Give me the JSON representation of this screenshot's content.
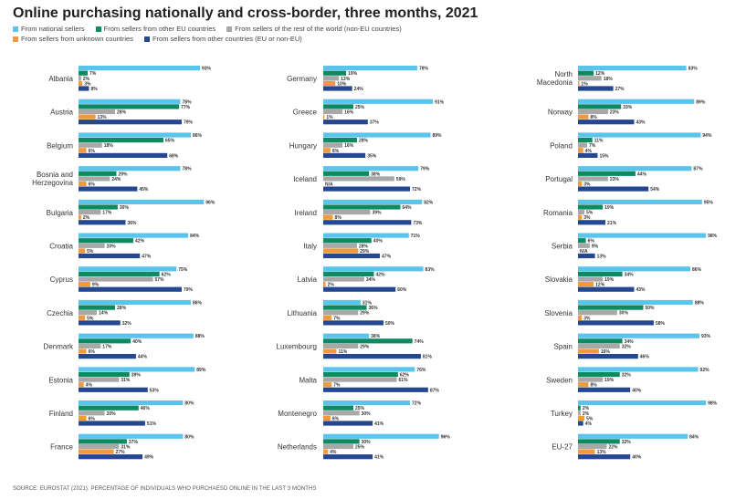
{
  "title": "Online purchasing nationally and cross-border, three months, 2021",
  "source": "SOURCE: EUROSTAT (2021): PERCENTAGE OF INDIVIDUALS WHO PURCHAESD ONLINE IN THE LAST 3 MONTHS",
  "colors": {
    "national": "#5bc4ec",
    "other_eu": "#0e8a62",
    "rest_world": "#a8a8a8",
    "unknown": "#ef9a3c",
    "other_countries": "#24478f"
  },
  "chart_data": {
    "type": "bar",
    "orientation": "horizontal",
    "unit": "%",
    "xlim": [
      0,
      100
    ],
    "grid": false,
    "series": [
      {
        "key": "national",
        "name": "From national sellers"
      },
      {
        "key": "other_eu",
        "name": "From sellers from other EU countries"
      },
      {
        "key": "rest_world",
        "name": "From sellers of the rest of the world (non-EU countries)"
      },
      {
        "key": "unknown",
        "name": "From sellers from unknown countries"
      },
      {
        "key": "other_countries",
        "name": "From sellers from other countries (EU or non-EU)"
      }
    ],
    "columns": [
      [
        {
          "country": "Albania",
          "values": [
            93,
            7,
            2,
            3,
            8
          ]
        },
        {
          "country": "Austria",
          "values": [
            78,
            77,
            28,
            13,
            79
          ]
        },
        {
          "country": "Belgium",
          "values": [
            86,
            65,
            18,
            6,
            68
          ]
        },
        {
          "country": "Bosnia and Herzegovina",
          "values": [
            78,
            29,
            24,
            6,
            45
          ]
        },
        {
          "country": "Bulgaria",
          "values": [
            96,
            30,
            17,
            2,
            36
          ]
        },
        {
          "country": "Croatia",
          "values": [
            84,
            42,
            20,
            5,
            47
          ]
        },
        {
          "country": "Cyprus",
          "values": [
            75,
            62,
            57,
            9,
            79
          ]
        },
        {
          "country": "Czechia",
          "values": [
            86,
            28,
            14,
            5,
            32
          ]
        },
        {
          "country": "Denmark",
          "values": [
            88,
            40,
            17,
            6,
            44
          ]
        },
        {
          "country": "Estonia",
          "values": [
            89,
            39,
            31,
            4,
            53
          ]
        },
        {
          "country": "Finland",
          "values": [
            80,
            46,
            20,
            6,
            51
          ]
        },
        {
          "country": "France",
          "values": [
            80,
            37,
            31,
            27,
            49
          ]
        }
      ],
      [
        {
          "country": "Germany",
          "values": [
            78,
            19,
            13,
            10,
            24
          ]
        },
        {
          "country": "Greece",
          "values": [
            91,
            25,
            16,
            1,
            37
          ]
        },
        {
          "country": "Hungary",
          "values": [
            89,
            28,
            16,
            6,
            35
          ]
        },
        {
          "country": "Iceland",
          "values": [
            79,
            38,
            59,
            "N/A",
            72
          ]
        },
        {
          "country": "Ireland",
          "values": [
            82,
            64,
            39,
            8,
            73
          ]
        },
        {
          "country": "Italy",
          "values": [
            71,
            40,
            28,
            29,
            47
          ]
        },
        {
          "country": "Latvia",
          "values": [
            83,
            42,
            34,
            2,
            60
          ]
        },
        {
          "country": "Lithuania",
          "values": [
            31,
            36,
            29,
            7,
            50
          ]
        },
        {
          "country": "Luxembourg",
          "values": [
            38,
            74,
            29,
            11,
            81
          ]
        },
        {
          "country": "Malta",
          "values": [
            76,
            62,
            61,
            7,
            87
          ]
        },
        {
          "country": "Montenegro",
          "values": [
            72,
            25,
            30,
            6,
            41
          ]
        },
        {
          "country": "Netherlands",
          "values": [
            96,
            30,
            25,
            4,
            41
          ]
        }
      ],
      [
        {
          "country": "North Macedonia",
          "values": [
            83,
            12,
            18,
            1,
            27
          ]
        },
        {
          "country": "Norway",
          "values": [
            89,
            33,
            23,
            8,
            43
          ]
        },
        {
          "country": "Poland",
          "values": [
            94,
            11,
            7,
            4,
            15
          ]
        },
        {
          "country": "Portugal",
          "values": [
            87,
            44,
            23,
            3,
            54
          ]
        },
        {
          "country": "Romania",
          "values": [
            95,
            19,
            5,
            3,
            21
          ]
        },
        {
          "country": "Serbia",
          "values": [
            98,
            6,
            9,
            "N/A",
            13
          ]
        },
        {
          "country": "Slovakia",
          "values": [
            86,
            34,
            19,
            12,
            43
          ]
        },
        {
          "country": "Slovenia",
          "values": [
            88,
            50,
            30,
            3,
            58
          ]
        },
        {
          "country": "Spain",
          "values": [
            93,
            34,
            32,
            16,
            46
          ]
        },
        {
          "country": "Sweden",
          "values": [
            92,
            32,
            19,
            8,
            40
          ]
        },
        {
          "country": "Turkey",
          "values": [
            98,
            2,
            2,
            5,
            4
          ]
        },
        {
          "country": "EU-27",
          "values": [
            84,
            32,
            22,
            13,
            40
          ]
        }
      ]
    ]
  }
}
